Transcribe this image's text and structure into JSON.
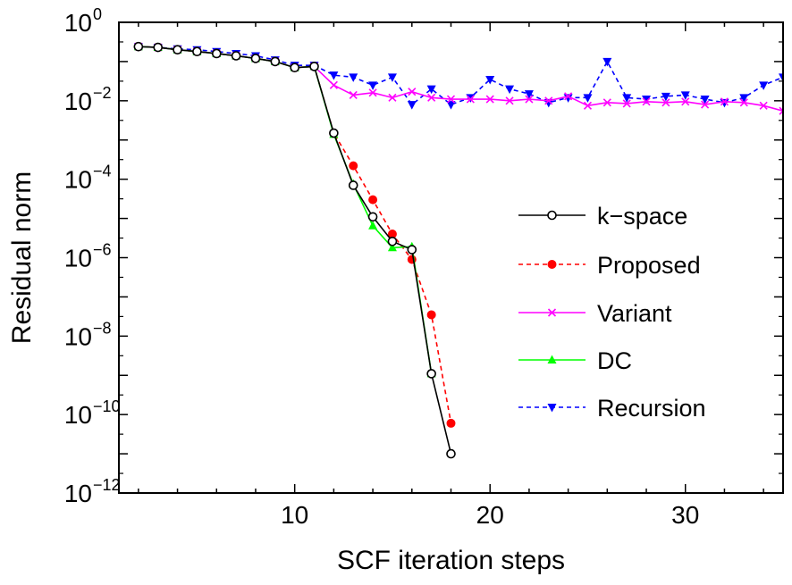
{
  "chart_data": {
    "type": "line",
    "xlabel": "SCF iteration steps",
    "ylabel": "Residual norm",
    "xlim": [
      1,
      35
    ],
    "ylim": [
      1e-12,
      1
    ],
    "yscale": "log",
    "xticks": [
      10,
      20,
      30
    ],
    "yticks": [
      {
        "base": "10",
        "exp": "−12",
        "value": 1e-12
      },
      {
        "base": "10",
        "exp": "−10",
        "value": 1e-10
      },
      {
        "base": "10",
        "exp": "−8",
        "value": 1e-08
      },
      {
        "base": "10",
        "exp": "−6",
        "value": 1e-06
      },
      {
        "base": "10",
        "exp": "−4",
        "value": 0.0001
      },
      {
        "base": "10",
        "exp": "−2",
        "value": 0.01
      },
      {
        "base": "10",
        "exp": "0",
        "value": 1
      }
    ],
    "legend_position": "center-right",
    "grid": false,
    "series": [
      {
        "name": "k−space",
        "color": "#000000",
        "line": "solid",
        "marker": "open-circle",
        "x": [
          2,
          3,
          4,
          5,
          6,
          7,
          8,
          9,
          10,
          11,
          12,
          13,
          14,
          15,
          16,
          17,
          18
        ],
        "y": [
          0.24,
          0.23,
          0.2,
          0.18,
          0.16,
          0.14,
          0.12,
          0.1,
          0.07,
          0.075,
          0.0015,
          7e-05,
          1.1e-05,
          2.6e-06,
          1.6e-06,
          1.1e-09,
          1e-11
        ]
      },
      {
        "name": "Proposed",
        "color": "#ff0000",
        "line": "dashed",
        "marker": "filled-circle",
        "x": [
          2,
          3,
          4,
          5,
          6,
          7,
          8,
          9,
          10,
          11,
          12,
          13,
          14,
          15,
          16,
          17,
          18
        ],
        "y": [
          0.24,
          0.23,
          0.2,
          0.18,
          0.16,
          0.14,
          0.12,
          0.1,
          0.07,
          0.075,
          0.0015,
          0.00022,
          3e-05,
          4e-06,
          9e-07,
          3.5e-08,
          6e-11
        ]
      },
      {
        "name": "Variant",
        "color": "#ff00ff",
        "line": "solid",
        "marker": "x",
        "x": [
          2,
          3,
          4,
          5,
          6,
          7,
          8,
          9,
          10,
          11,
          12,
          13,
          14,
          15,
          16,
          17,
          18,
          19,
          20,
          21,
          22,
          23,
          24,
          25,
          26,
          27,
          28,
          29,
          30,
          31,
          32,
          33,
          34,
          35
        ],
        "y": [
          0.24,
          0.23,
          0.2,
          0.18,
          0.16,
          0.14,
          0.12,
          0.1,
          0.07,
          0.075,
          0.025,
          0.014,
          0.016,
          0.012,
          0.017,
          0.012,
          0.011,
          0.011,
          0.011,
          0.01,
          0.011,
          0.01,
          0.013,
          0.0075,
          0.009,
          0.0085,
          0.0095,
          0.009,
          0.0095,
          0.008,
          0.0095,
          0.009,
          0.0075,
          0.0055
        ]
      },
      {
        "name": "DC",
        "color": "#00ff00",
        "line": "solid",
        "marker": "filled-triangle-up",
        "x": [
          2,
          3,
          4,
          5,
          6,
          7,
          8,
          9,
          10,
          11,
          12,
          13,
          14,
          15,
          16,
          17
        ],
        "y": [
          0.24,
          0.23,
          0.2,
          0.18,
          0.16,
          0.14,
          0.12,
          0.1,
          0.07,
          0.075,
          0.0014,
          7.5e-05,
          6.5e-06,
          1.8e-06,
          1.9e-06,
          1.1e-09
        ]
      },
      {
        "name": "Recursion",
        "color": "#0000ff",
        "line": "dashed",
        "marker": "filled-triangle-down",
        "x": [
          2,
          3,
          4,
          5,
          6,
          7,
          8,
          9,
          10,
          11,
          12,
          13,
          14,
          15,
          16,
          17,
          18,
          19,
          20,
          21,
          22,
          23,
          24,
          25,
          26,
          27,
          28,
          29,
          30,
          31,
          32,
          33,
          34,
          35
        ],
        "y": [
          0.24,
          0.23,
          0.21,
          0.2,
          0.18,
          0.16,
          0.14,
          0.11,
          0.08,
          0.08,
          0.045,
          0.04,
          0.025,
          0.04,
          0.008,
          0.02,
          0.008,
          0.012,
          0.035,
          0.02,
          0.015,
          0.009,
          0.012,
          0.012,
          0.1,
          0.012,
          0.011,
          0.013,
          0.014,
          0.011,
          0.009,
          0.012,
          0.025,
          0.04
        ]
      }
    ]
  }
}
